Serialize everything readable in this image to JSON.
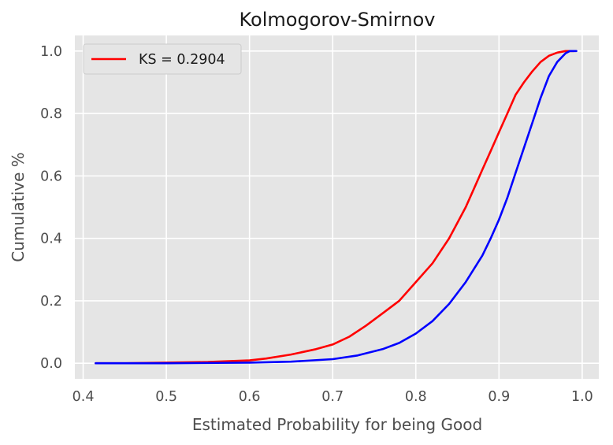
{
  "chart_data": {
    "type": "line",
    "title": "Kolmogorov-Smirnov",
    "xlabel": "Estimated Probability for being Good",
    "ylabel": "Cumulative %",
    "xlim": [
      0.39,
      1.02
    ],
    "ylim": [
      -0.05,
      1.05
    ],
    "xticks": [
      0.4,
      0.5,
      0.6,
      0.7,
      0.8,
      0.9,
      1.0
    ],
    "xtick_labels": [
      "0.4",
      "0.5",
      "0.6",
      "0.7",
      "0.8",
      "0.9",
      "1.0"
    ],
    "yticks": [
      0.0,
      0.2,
      0.4,
      0.6,
      0.8,
      1.0
    ],
    "ytick_labels": [
      "0.0",
      "0.2",
      "0.4",
      "0.6",
      "0.8",
      "1.0"
    ],
    "grid": true,
    "legend_position": "top-left",
    "legend": [
      {
        "label": "KS = 0.2904",
        "color": "#ff0000"
      }
    ],
    "series": [
      {
        "color": "#ff0000",
        "x": [
          0.415,
          0.45,
          0.5,
          0.55,
          0.6,
          0.62,
          0.65,
          0.68,
          0.7,
          0.72,
          0.74,
          0.76,
          0.78,
          0.8,
          0.82,
          0.84,
          0.85,
          0.86,
          0.87,
          0.88,
          0.89,
          0.9,
          0.91,
          0.92,
          0.93,
          0.94,
          0.95,
          0.96,
          0.97,
          0.98,
          0.99
        ],
        "y": [
          0.0,
          0.0,
          0.002,
          0.004,
          0.009,
          0.015,
          0.028,
          0.045,
          0.06,
          0.085,
          0.12,
          0.16,
          0.2,
          0.26,
          0.32,
          0.4,
          0.45,
          0.5,
          0.56,
          0.62,
          0.68,
          0.74,
          0.8,
          0.86,
          0.9,
          0.935,
          0.965,
          0.985,
          0.995,
          1.0,
          1.0
        ]
      },
      {
        "color": "#0000ff",
        "x": [
          0.415,
          0.5,
          0.6,
          0.65,
          0.7,
          0.73,
          0.76,
          0.78,
          0.8,
          0.82,
          0.84,
          0.86,
          0.88,
          0.89,
          0.9,
          0.91,
          0.92,
          0.93,
          0.94,
          0.95,
          0.96,
          0.97,
          0.98,
          0.985,
          0.993
        ],
        "y": [
          0.0,
          0.0,
          0.002,
          0.005,
          0.013,
          0.025,
          0.045,
          0.065,
          0.095,
          0.135,
          0.19,
          0.26,
          0.345,
          0.4,
          0.46,
          0.53,
          0.61,
          0.69,
          0.77,
          0.85,
          0.92,
          0.965,
          0.993,
          1.0,
          1.0
        ]
      }
    ]
  }
}
